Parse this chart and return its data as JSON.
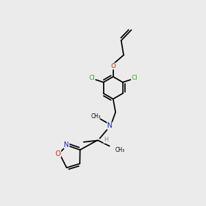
{
  "bg_color": "#ebebeb",
  "bond_color": "#000000",
  "bond_width": 1.3,
  "atom_colors": {
    "C": "#000000",
    "N": "#2222cc",
    "O": "#cc2200",
    "Cl": "#22aa22",
    "H": "#888888"
  },
  "figsize": [
    3.0,
    3.0
  ],
  "dpi": 100
}
